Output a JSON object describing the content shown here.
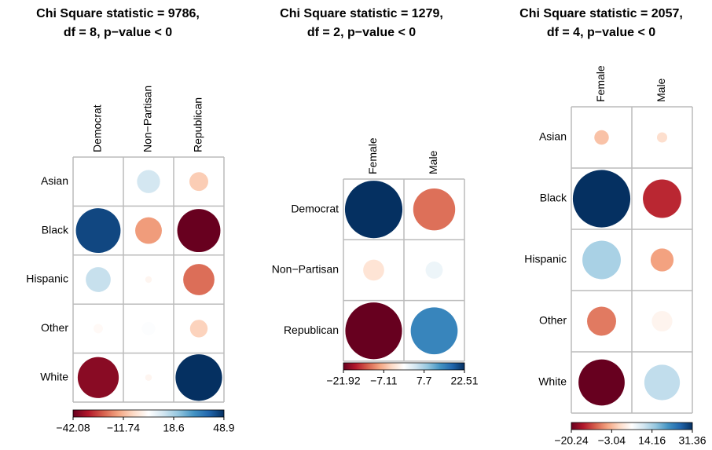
{
  "chart_data": [
    {
      "type": "corrplot",
      "title": [
        "Chi Square statistic = 9786,",
        "df = 8, p−value < 0"
      ],
      "rows": [
        "Asian",
        "Black",
        "Hispanic",
        "Other",
        "White"
      ],
      "columns": [
        "Democrat",
        "Non−Partisan",
        "Republican"
      ],
      "values": [
        [
          0,
          12,
          -8
        ],
        [
          45,
          -16,
          -42
        ],
        [
          14,
          1,
          -22
        ],
        [
          2,
          4,
          -7
        ],
        [
          -38,
          1,
          48.94
        ]
      ],
      "clim": [
        -42.08,
        48.94
      ],
      "cticks": [
        {
          "value": -42.08,
          "label": "−42.08"
        },
        {
          "value": -11.74,
          "label": "−11.74"
        },
        18.6,
        48.9
      ],
      "colormap": [
        "#67001F",
        "#B2182B",
        "#D6604D",
        "#F4A582",
        "#FDDBC7",
        "#FFFFFF",
        "#D1E5F0",
        "#92C5DE",
        "#4393C3",
        "#2166AC",
        "#053061"
      ]
    },
    {
      "type": "corrplot",
      "title": [
        "Chi Square statistic = 1279,",
        "df = 2, p−value < 0"
      ],
      "rows": [
        "Democrat",
        "Non−Partisan",
        "Republican"
      ],
      "columns": [
        "Female",
        "Male"
      ],
      "values": [
        [
          22.51,
          -12
        ],
        [
          -3,
          2
        ],
        [
          -21.92,
          15
        ]
      ],
      "clim": [
        -21.92,
        22.51
      ],
      "cticks": [
        {
          "value": -21.92,
          "label": "−21.92"
        },
        {
          "value": -7.11,
          "label": "−7.11"
        },
        7.7,
        22.51
      ],
      "colormap": [
        "#67001F",
        "#B2182B",
        "#D6604D",
        "#F4A582",
        "#FDDBC7",
        "#FFFFFF",
        "#D1E5F0",
        "#92C5DE",
        "#4393C3",
        "#2166AC",
        "#053061"
      ]
    },
    {
      "type": "corrplot",
      "title": [
        "Chi Square statistic = 2057,",
        "df = 4, p−value < 0"
      ],
      "rows": [
        "Asian",
        "Black",
        "Hispanic",
        "Other",
        "White"
      ],
      "columns": [
        "Female",
        "Male"
      ],
      "values": [
        [
          -2,
          1
        ],
        [
          31.36,
          -14
        ],
        [
          14,
          -5
        ],
        [
          -8,
          4
        ],
        [
          -20.24,
          12
        ]
      ],
      "clim": [
        -20.24,
        31.36
      ],
      "cticks": [
        {
          "value": -20.24,
          "label": "−20.24"
        },
        {
          "value": -3.04,
          "label": "−3.04"
        },
        14.16,
        31.36
      ],
      "colormap": [
        "#67001F",
        "#B2182B",
        "#D6604D",
        "#F4A582",
        "#FDDBC7",
        "#FFFFFF",
        "#D1E5F0",
        "#92C5DE",
        "#4393C3",
        "#2166AC",
        "#053061"
      ]
    }
  ]
}
